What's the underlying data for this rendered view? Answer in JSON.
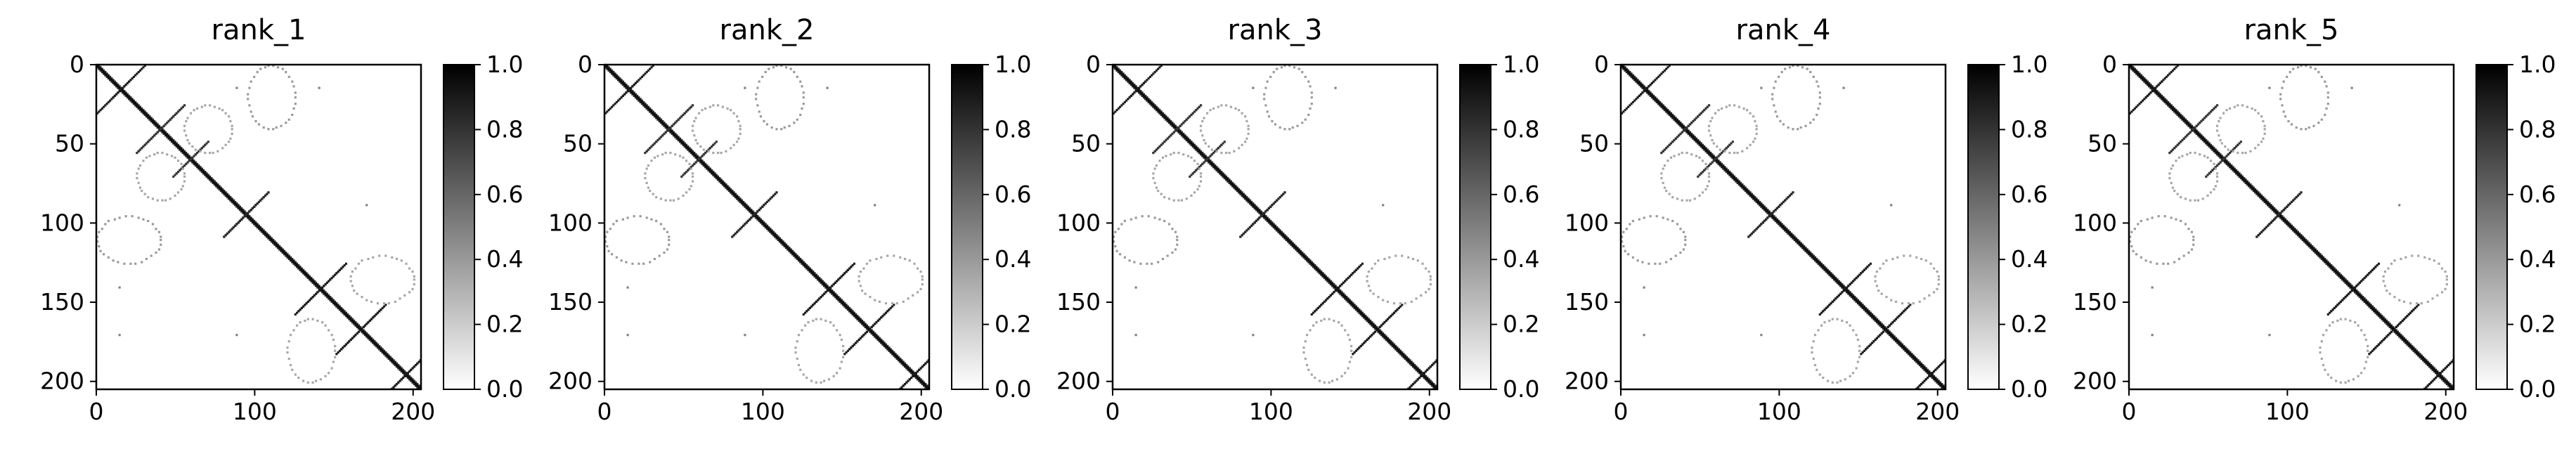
{
  "chart_data": [
    {
      "type": "heatmap",
      "title": "rank_1",
      "xlim": [
        0,
        205
      ],
      "ylim": [
        205,
        0
      ],
      "xticks": [
        0,
        100,
        200
      ],
      "yticks": [
        0,
        50,
        100,
        150,
        200
      ],
      "colorbar": {
        "min": 0.0,
        "max": 1.0,
        "ticks": [
          "0.0",
          "0.2",
          "0.4",
          "0.6",
          "0.8",
          "1.0"
        ],
        "colormap": "white-to-black"
      }
    },
    {
      "type": "heatmap",
      "title": "rank_2",
      "xlim": [
        0,
        205
      ],
      "ylim": [
        205,
        0
      ],
      "xticks": [
        0,
        100,
        200
      ],
      "yticks": [
        0,
        50,
        100,
        150,
        200
      ],
      "colorbar": {
        "min": 0.0,
        "max": 1.0,
        "ticks": [
          "0.0",
          "0.2",
          "0.4",
          "0.6",
          "0.8",
          "1.0"
        ],
        "colormap": "white-to-black"
      }
    },
    {
      "type": "heatmap",
      "title": "rank_3",
      "xlim": [
        0,
        205
      ],
      "ylim": [
        205,
        0
      ],
      "xticks": [
        0,
        100,
        200
      ],
      "yticks": [
        0,
        50,
        100,
        150,
        200
      ],
      "colorbar": {
        "min": 0.0,
        "max": 1.0,
        "ticks": [
          "0.0",
          "0.2",
          "0.4",
          "0.6",
          "0.8",
          "1.0"
        ],
        "colormap": "white-to-black"
      }
    },
    {
      "type": "heatmap",
      "title": "rank_4",
      "xlim": [
        0,
        205
      ],
      "ylim": [
        205,
        0
      ],
      "xticks": [
        0,
        100,
        200
      ],
      "yticks": [
        0,
        50,
        100,
        150,
        200
      ],
      "colorbar": {
        "min": 0.0,
        "max": 1.0,
        "ticks": [
          "0.0",
          "0.2",
          "0.4",
          "0.6",
          "0.8",
          "1.0"
        ],
        "colormap": "white-to-black"
      }
    },
    {
      "type": "heatmap",
      "title": "rank_5",
      "xlim": [
        0,
        205
      ],
      "ylim": [
        205,
        0
      ],
      "xticks": [
        0,
        100,
        200
      ],
      "yticks": [
        0,
        50,
        100,
        150,
        200
      ],
      "colorbar": {
        "min": 0.0,
        "max": 1.0,
        "ticks": [
          "0.0",
          "0.2",
          "0.4",
          "0.6",
          "0.8",
          "1.0"
        ],
        "colormap": "white-to-black"
      }
    }
  ],
  "heatmap_features": {
    "diagonal": {
      "from": 0,
      "to": 205,
      "value": 1.0
    },
    "anti_diagonal_segments": [
      {
        "center": [
          22,
          8
        ],
        "half_length": 12,
        "value": 0.9
      },
      {
        "center": [
          40,
          40
        ],
        "half_length": 15,
        "value": 0.8
      },
      {
        "center": [
          58,
          60
        ],
        "half_length": 10,
        "value": 0.8
      },
      {
        "center": [
          90,
          98
        ],
        "half_length": 10,
        "value": 0.85
      },
      {
        "center": [
          98,
          90
        ],
        "half_length": 10,
        "value": 0.85
      },
      {
        "center": [
          140,
          142
        ],
        "half_length": 15,
        "value": 0.9
      },
      {
        "center": [
          168,
          165
        ],
        "half_length": 14,
        "value": 0.9
      },
      {
        "center": [
          195,
          195
        ],
        "half_length": 12,
        "value": 0.9
      }
    ],
    "loop_regions": [
      {
        "x": [
          95,
          125
        ],
        "y": [
          0,
          40
        ],
        "value": 0.4
      },
      {
        "x": [
          0,
          40
        ],
        "y": [
          95,
          125
        ],
        "value": 0.4
      },
      {
        "x": [
          55,
          85
        ],
        "y": [
          25,
          55
        ],
        "value": 0.35
      },
      {
        "x": [
          25,
          55
        ],
        "y": [
          55,
          85
        ],
        "value": 0.35
      },
      {
        "x": [
          160,
          200
        ],
        "y": [
          120,
          150
        ],
        "value": 0.35
      },
      {
        "x": [
          120,
          150
        ],
        "y": [
          160,
          200
        ],
        "value": 0.35
      }
    ],
    "isolated_points": [
      [
        140,
        14
      ],
      [
        14,
        140
      ],
      [
        170,
        88
      ],
      [
        88,
        170
      ],
      [
        88,
        14
      ],
      [
        14,
        170
      ]
    ]
  }
}
